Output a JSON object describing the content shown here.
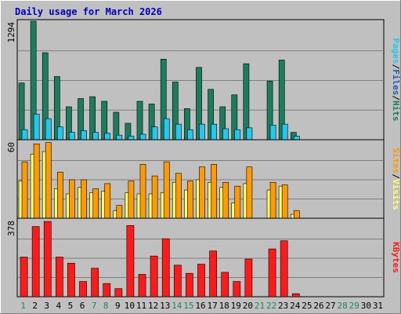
{
  "chart_data": {
    "type": "bar",
    "title": "Daily usage for March 2026",
    "days": [
      "1",
      "2",
      "3",
      "4",
      "5",
      "6",
      "7",
      "8",
      "9",
      "10",
      "11",
      "12",
      "13",
      "14",
      "15",
      "16",
      "17",
      "18",
      "19",
      "20",
      "21",
      "22",
      "23",
      "24",
      "25",
      "26",
      "27",
      "28",
      "29",
      "30",
      "31"
    ],
    "weekend_days": [
      "1",
      "7",
      "8",
      "14",
      "15",
      "21",
      "22",
      "28",
      "29"
    ],
    "panels": [
      {
        "id": "hits",
        "scale_label": "1294",
        "ymax": 1294,
        "side_labels": [
          "Pages",
          "/",
          "Files",
          "/",
          "Hits"
        ],
        "series": [
          {
            "name": "Hits",
            "color": "#1a7d5e",
            "values": [
              620,
              1294,
              950,
              690,
              360,
              450,
              470,
              420,
              300,
              180,
              420,
              390,
              880,
              630,
              340,
              790,
              550,
              360,
              490,
              830,
              0,
              640,
              870,
              80,
              0,
              0,
              0,
              0,
              0,
              0,
              0
            ]
          },
          {
            "name": "Files",
            "color": "#22c8f0",
            "values": [
              110,
              280,
              230,
              140,
              80,
              100,
              80,
              70,
              50,
              40,
              60,
              140,
              230,
              170,
              110,
              170,
              170,
              120,
              110,
              130,
              0,
              160,
              170,
              40,
              0,
              0,
              0,
              0,
              0,
              0,
              0
            ]
          },
          {
            "name": "Pages",
            "color": "#1ea0c8",
            "values": [
              0,
              0,
              0,
              0,
              0,
              0,
              0,
              0,
              0,
              0,
              0,
              0,
              0,
              0,
              0,
              0,
              0,
              0,
              0,
              0,
              0,
              0,
              0,
              0,
              0,
              0,
              0,
              0,
              0,
              0,
              0
            ]
          }
        ]
      },
      {
        "id": "visits",
        "scale_label": "60",
        "ymax": 60,
        "side_labels": [
          "Sites",
          "/",
          "Visits"
        ],
        "series": [
          {
            "name": "Visits",
            "color": "#ffff66",
            "values": [
              29,
              50,
              52,
              23,
              19,
              24,
              20,
              21,
              6,
              20,
              19,
              19,
              20,
              28,
              22,
              30,
              28,
              24,
              12,
              27,
              0,
              22,
              25,
              3,
              0,
              0,
              0,
              0,
              0,
              0,
              0
            ]
          },
          {
            "name": "Sites",
            "color": "#ff9b00",
            "values": [
              44,
              58,
              59,
              36,
              30,
              30,
              23,
              27,
              10,
              29,
              42,
              33,
              44,
              35,
              29,
              40,
              42,
              28,
              25,
              40,
              0,
              28,
              26,
              6,
              0,
              0,
              0,
              0,
              0,
              0,
              0
            ]
          }
        ]
      },
      {
        "id": "kbytes",
        "scale_label": "378",
        "ymax": 378,
        "side_labels": [
          "KBytes"
        ],
        "series": [
          {
            "name": "KBytes",
            "color": "#ff1a1a",
            "values": [
              195,
              345,
              370,
              195,
              165,
              75,
              140,
              65,
              40,
              350,
              110,
              200,
              285,
              155,
              115,
              160,
              225,
              120,
              75,
              185,
              0,
              235,
              275,
              15,
              0,
              0,
              0,
              0,
              0,
              0,
              0
            ]
          }
        ]
      }
    ]
  }
}
